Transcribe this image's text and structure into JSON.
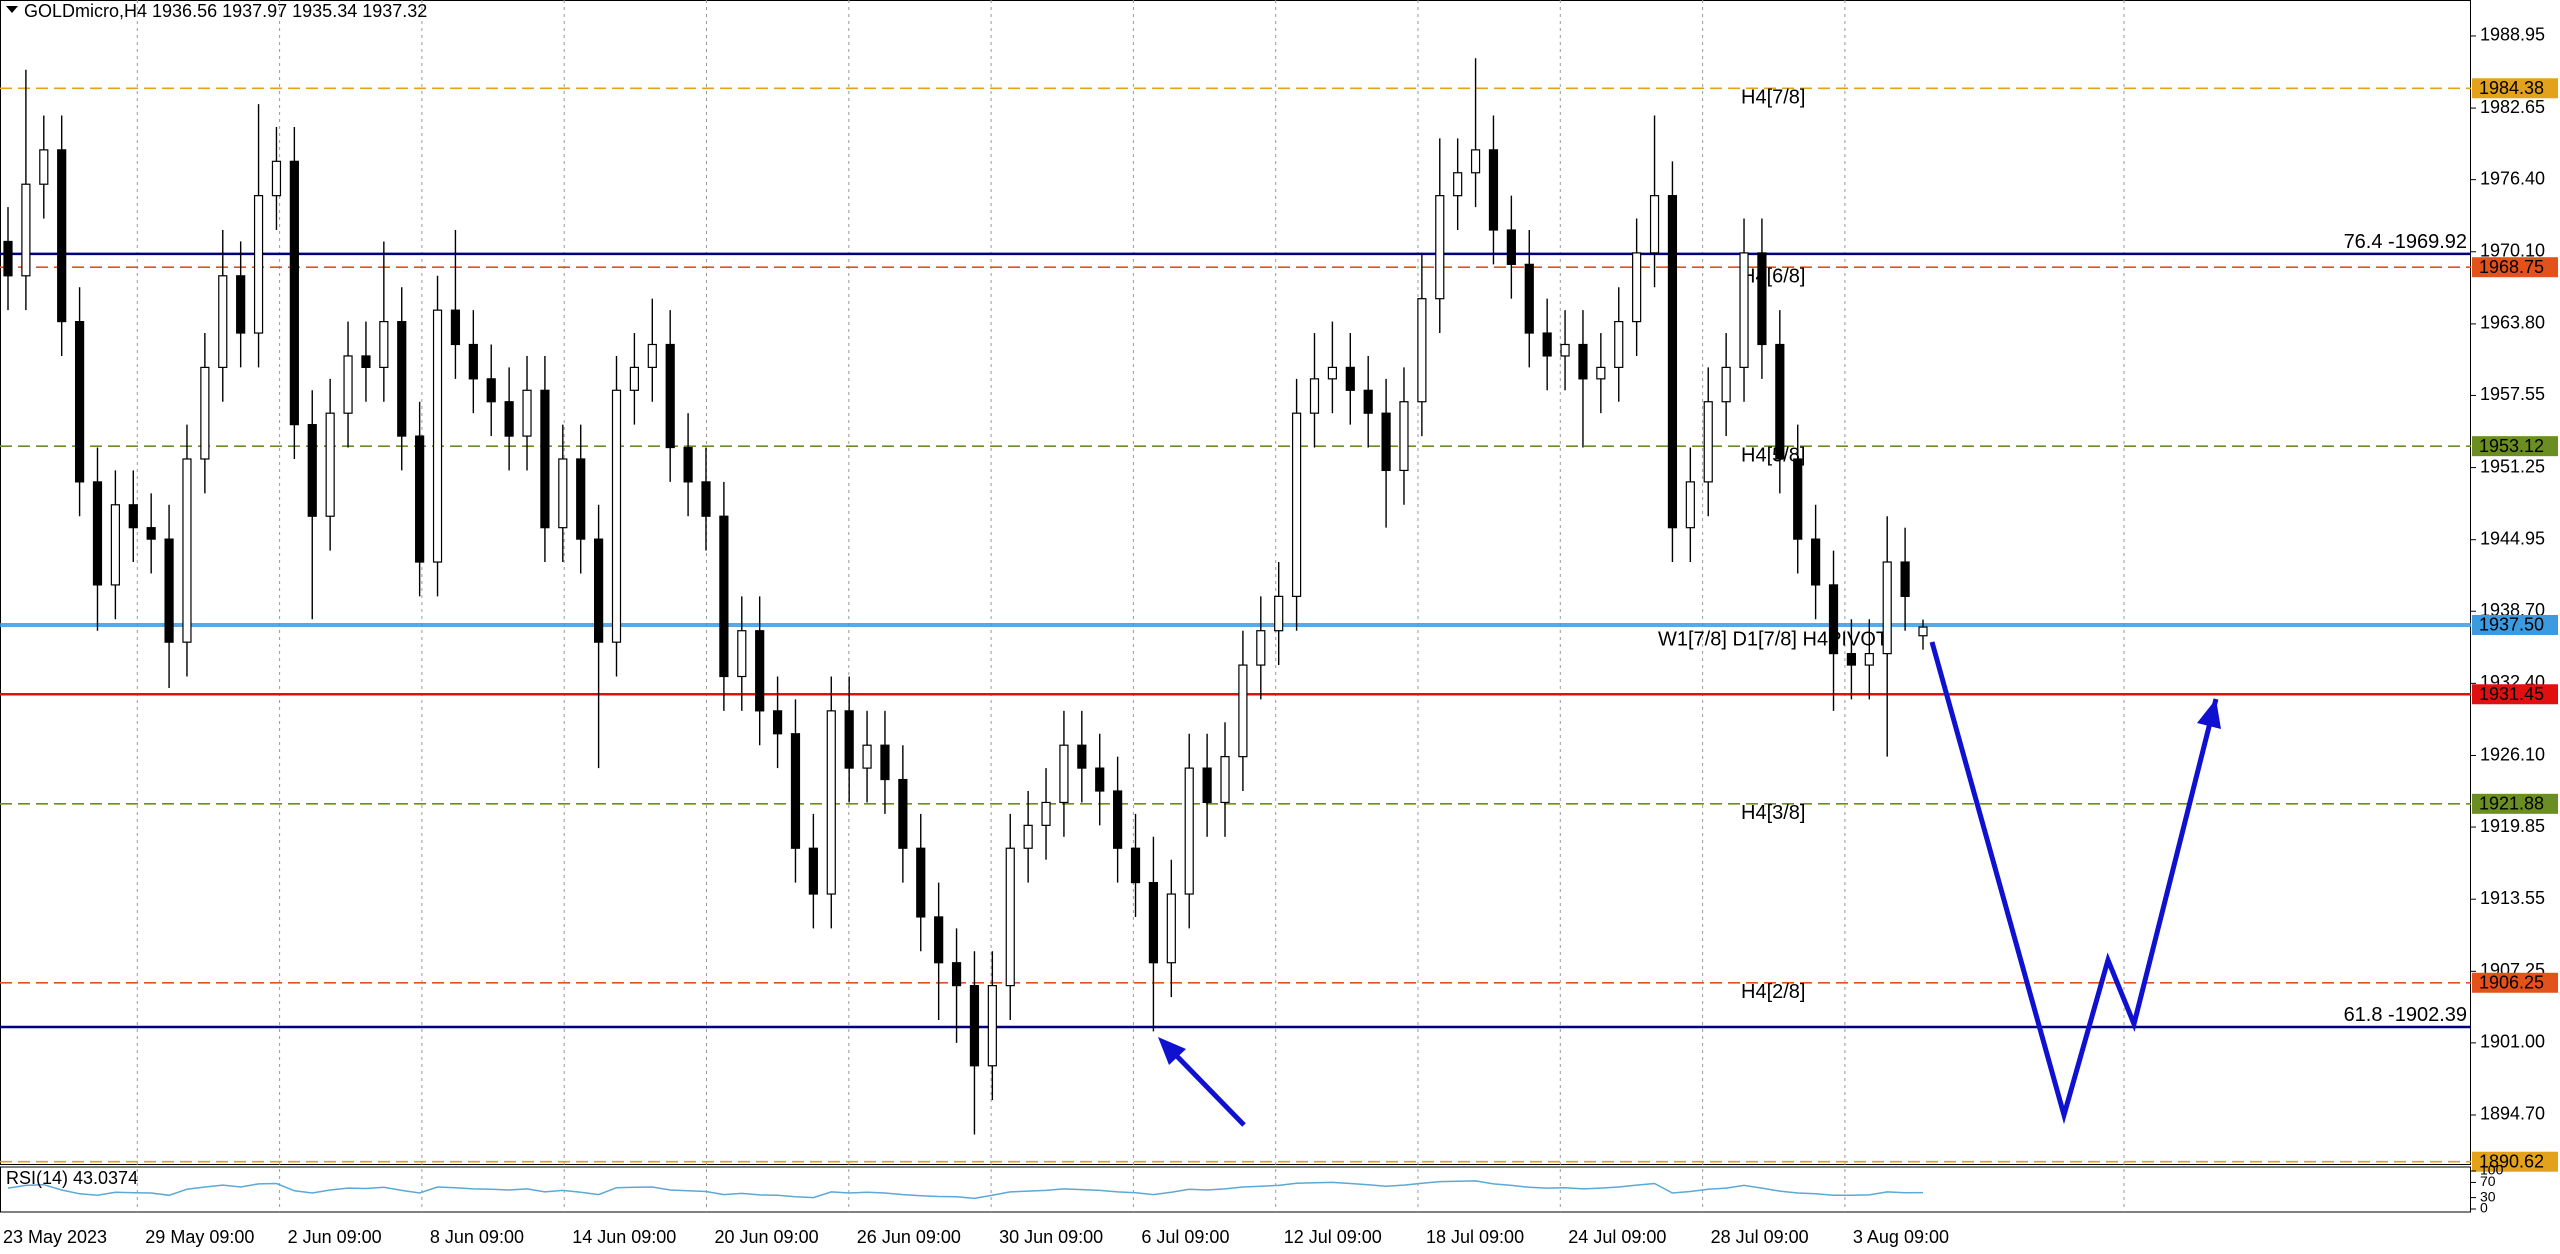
{
  "chart_data": {
    "type": "candlestick",
    "title": "GOLDmicro,H4  1936.56 1937.97 1935.34 1937.32",
    "up_color": "#ffffff",
    "down_color": "#000000",
    "outline_color": "#000000",
    "open": [
      1971,
      1968,
      1976,
      1979,
      1964,
      1950,
      1941,
      1948,
      1946,
      1945,
      1936,
      1952,
      1960,
      1968,
      1963,
      1975,
      1978,
      1955,
      1947,
      1956,
      1961,
      1960,
      1964,
      1954,
      1943,
      1965,
      1962,
      1959,
      1957,
      1954,
      1958,
      1946,
      1952,
      1945,
      1936,
      1958,
      1960,
      1962,
      1953,
      1950,
      1947,
      1933,
      1937,
      1930,
      1928,
      1918,
      1914,
      1930,
      1925,
      1927,
      1924,
      1918,
      1912,
      1908,
      1906,
      1899,
      1906,
      1918,
      1920,
      1922,
      1927,
      1925,
      1923,
      1918,
      1915,
      1908,
      1914,
      1925,
      1922,
      1926,
      1934,
      1937,
      1940,
      1956,
      1959,
      1960,
      1958,
      1956,
      1951,
      1957,
      1966,
      1975,
      1977,
      1979,
      1972,
      1969,
      1963,
      1961,
      1962,
      1959,
      1960,
      1964,
      1970,
      1975,
      1946,
      1950,
      1957,
      1960,
      1970,
      1962,
      1952,
      1945,
      1941,
      1935,
      1934,
      1935,
      1943,
      1936.56
    ],
    "high": [
      1974,
      1986,
      1982,
      1982,
      1967,
      1953,
      1951,
      1951,
      1949,
      1948,
      1955,
      1963,
      1972,
      1971,
      1983,
      1981,
      1981,
      1958,
      1959,
      1964,
      1964,
      1971,
      1967,
      1957,
      1968,
      1972,
      1965,
      1962,
      1960,
      1961,
      1961,
      1955,
      1955,
      1948,
      1961,
      1963,
      1966,
      1965,
      1956,
      1953,
      1950,
      1940,
      1940,
      1933,
      1931,
      1921,
      1933,
      1933,
      1930,
      1930,
      1927,
      1921,
      1915,
      1911,
      1909,
      1909,
      1921,
      1923,
      1925,
      1930,
      1930,
      1928,
      1926,
      1921,
      1919,
      1917,
      1928,
      1928,
      1929,
      1937,
      1940,
      1943,
      1959,
      1963,
      1964,
      1963,
      1961,
      1959,
      1960,
      1970,
      1980,
      1980,
      1987,
      1982,
      1975,
      1972,
      1966,
      1965,
      1965,
      1963,
      1967,
      1973,
      1982,
      1978,
      1953,
      1960,
      1963,
      1973,
      1973,
      1965,
      1955,
      1948,
      1944,
      1938,
      1938,
      1947,
      1946,
      1937.97
    ],
    "low": [
      1965,
      1965,
      1973,
      1961,
      1947,
      1937,
      1938,
      1943,
      1942,
      1932,
      1933,
      1949,
      1957,
      1960,
      1960,
      1972,
      1952,
      1938,
      1944,
      1953,
      1957,
      1957,
      1951,
      1940,
      1940,
      1959,
      1956,
      1954,
      1951,
      1951,
      1943,
      1943,
      1942,
      1925,
      1933,
      1955,
      1957,
      1950,
      1947,
      1944,
      1930,
      1930,
      1927,
      1925,
      1915,
      1911,
      1911,
      1922,
      1922,
      1921,
      1915,
      1909,
      1903,
      1901,
      1893,
      1896,
      1903,
      1915,
      1917,
      1919,
      1922,
      1920,
      1915,
      1912,
      1902,
      1905,
      1911,
      1919,
      1919,
      1923,
      1931,
      1934,
      1937,
      1953,
      1956,
      1955,
      1953,
      1946,
      1948,
      1954,
      1963,
      1972,
      1974,
      1969,
      1966,
      1960,
      1958,
      1958,
      1953,
      1956,
      1957,
      1961,
      1967,
      1943,
      1943,
      1947,
      1954,
      1957,
      1959,
      1949,
      1942,
      1938,
      1930,
      1931,
      1931,
      1926,
      1937,
      1935.34
    ],
    "close": [
      1968,
      1976,
      1979,
      1964,
      1950,
      1941,
      1948,
      1946,
      1945,
      1936,
      1952,
      1960,
      1968,
      1963,
      1975,
      1978,
      1955,
      1947,
      1956,
      1961,
      1960,
      1964,
      1954,
      1943,
      1965,
      1962,
      1959,
      1957,
      1954,
      1958,
      1946,
      1952,
      1945,
      1936,
      1958,
      1960,
      1962,
      1953,
      1950,
      1947,
      1933,
      1937,
      1930,
      1928,
      1918,
      1914,
      1930,
      1925,
      1927,
      1924,
      1918,
      1912,
      1908,
      1906,
      1899,
      1906,
      1918,
      1920,
      1922,
      1927,
      1925,
      1923,
      1918,
      1915,
      1908,
      1914,
      1925,
      1922,
      1926,
      1934,
      1937,
      1940,
      1956,
      1959,
      1960,
      1958,
      1956,
      1951,
      1957,
      1966,
      1975,
      1977,
      1979,
      1972,
      1969,
      1963,
      1961,
      1962,
      1959,
      1960,
      1964,
      1970,
      1975,
      1946,
      1950,
      1957,
      1960,
      1970,
      1962,
      1952,
      1945,
      1941,
      1935,
      1934,
      1935,
      1943,
      1940,
      1937.32
    ],
    "ylim": [
      1890.42,
      1992.09
    ],
    "yticks": [
      1988.95,
      1982.65,
      {
        "value": 1976.4,
        "label": "1976.40"
      },
      {
        "value": 1970.1,
        "label": "1970.10"
      },
      {
        "value": 1963.8,
        "label": "1963.80"
      },
      1957.55,
      1951.25,
      1944.95,
      {
        "value": 1938.7,
        "label": "1938.70"
      },
      {
        "value": 1932.4,
        "label": "1932.40"
      },
      {
        "value": 1926.1,
        "label": "1926.10"
      },
      1919.85,
      1913.55,
      1907.25,
      {
        "value": 1901,
        "label": "1901.00"
      },
      {
        "value": 1894.7,
        "label": "1894.70"
      }
    ],
    "grid": false,
    "xgrid": true,
    "xlabels": [
      "23 May 2023",
      "29 May 09:00",
      "2 Jun 09:00",
      "8 Jun 09:00",
      "14 Jun 09:00",
      "20 Jun 09:00",
      "26 Jun 09:00",
      "30 Jun 09:00",
      "6 Jul 09:00",
      "12 Jul 09:00",
      "18 Jul 09:00",
      "24 Jul 09:00",
      "28 Jul 09:00",
      "3 Aug 09:00"
    ],
    "levels": [
      {
        "value": 1984.38,
        "tag": "1984.38",
        "label": "H4[7/8]",
        "color": "#e3a21a",
        "style": "dashed",
        "label_align": "left"
      },
      {
        "value": 1969.92,
        "label": "76.4 -1969.92",
        "color": "#000080",
        "style": "solid",
        "label_align": "right"
      },
      {
        "value": 1968.75,
        "tag": "1968.75",
        "label": "H4[6/8]",
        "color": "#e4521b",
        "style": "dashed",
        "label_align": "left"
      },
      {
        "value": 1953.12,
        "tag": "1953.12",
        "label": "H4[5/8]",
        "color": "#6b8e23",
        "style": "dashed",
        "label_align": "left"
      },
      {
        "value": 1937.5,
        "tag": "1937.50",
        "label": "W1[7/8] D1[7/8] H4PIVOT",
        "color": "#3c9be0",
        "style": "solid",
        "label_align": "pivot"
      },
      {
        "value": 1931.45,
        "tag": "1931.45",
        "color": "#e01010",
        "style": "solid"
      },
      {
        "value": 1921.88,
        "tag": "1921.88",
        "label": "H4[3/8]",
        "color": "#6b8e23",
        "style": "dashed",
        "label_align": "left"
      },
      {
        "value": 1906.25,
        "tag": "1906.25",
        "label": "H4[2/8]",
        "color": "#e4521b",
        "style": "dashed",
        "label_align": "left"
      },
      {
        "value": 1902.39,
        "label": "61.8 -1902.39",
        "color": "#000080",
        "style": "solid",
        "label_align": "right"
      },
      {
        "value": 1890.62,
        "tag": "1890.62",
        "color": "#e3a21a",
        "style": "dashed"
      }
    ],
    "indicator": {
      "title": "RSI(14) 43.0374",
      "color": "#5aa9d6",
      "ylim": [
        0,
        100
      ],
      "yticks": [
        100,
        70,
        30,
        0
      ],
      "values": [
        55,
        62,
        64,
        50,
        40,
        36,
        44,
        43,
        42,
        36,
        52,
        58,
        63,
        58,
        66,
        67,
        48,
        42,
        50,
        55,
        54,
        57,
        49,
        42,
        58,
        56,
        53,
        52,
        50,
        53,
        45,
        49,
        44,
        38,
        56,
        57,
        58,
        50,
        48,
        46,
        38,
        41,
        37,
        36,
        32,
        30,
        45,
        42,
        44,
        42,
        38,
        35,
        33,
        32,
        28,
        36,
        45,
        47,
        49,
        53,
        51,
        49,
        45,
        43,
        38,
        44,
        52,
        50,
        53,
        58,
        60,
        62,
        68,
        69,
        70,
        67,
        64,
        60,
        63,
        68,
        72,
        73,
        74,
        66,
        62,
        57,
        55,
        56,
        53,
        55,
        58,
        63,
        67,
        42,
        46,
        52,
        55,
        62,
        55,
        47,
        42,
        40,
        36,
        36,
        37,
        45,
        43,
        43.0374
      ]
    }
  }
}
